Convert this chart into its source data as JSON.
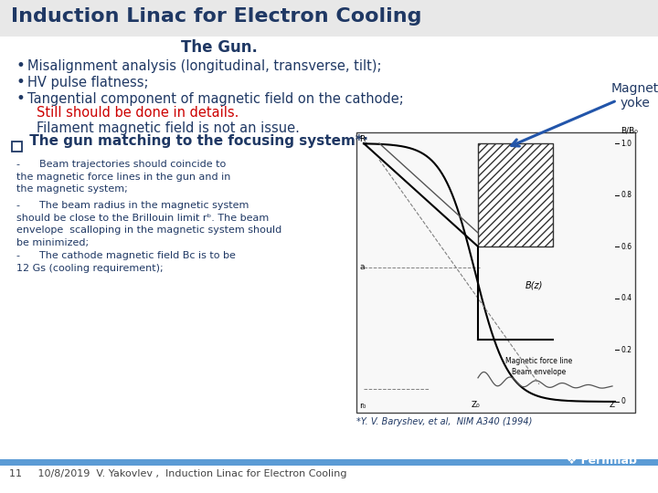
{
  "title": "Induction Linac for Electron Cooling",
  "title_color": "#1f3864",
  "subtitle": "The Gun.",
  "subtitle_color": "#1f3864",
  "background_color": "#ffffff",
  "bullet_color": "#1f3864",
  "red_color": "#cc0000",
  "blue_color": "#1f3864",
  "bullets": [
    "Misalignment analysis (longitudinal, transverse, tilt);",
    "HV pulse flatness;",
    "Tangential component of magnetic field on the cathode;"
  ],
  "red_text": "Still should be done in details.",
  "normal_text": "Filament magnetic field is not an issue.",
  "checkbox_text": " The gun matching to the focusing system*:",
  "body_text1": "-      Beam trajectories should coincide to\nthe magnetic force lines in the gun and in\nthe magnetic system;",
  "body_text2": "-      The beam radius in the magnetic system\nshould be close to the Brillouin limit rᵇ. The beam\nenvelope  scalloping in the magnetic system should\nbe minimized;",
  "body_text3": "-      The cathode magnetic field Bᴄ is to be\n12 Gs (cooling requirement);",
  "magnet_label": "Magnet\nyoke",
  "footer_bar_color": "#5b9bd5",
  "footer_text": "11     10/8/2019  V. Yakovlev ,  Induction Linac for Electron Cooling",
  "ref_text": "*Y. V. Baryshev, et al,  NIM A340 (1994)",
  "fermilab_color": "#1f3864",
  "arrow_color": "#1f3864"
}
